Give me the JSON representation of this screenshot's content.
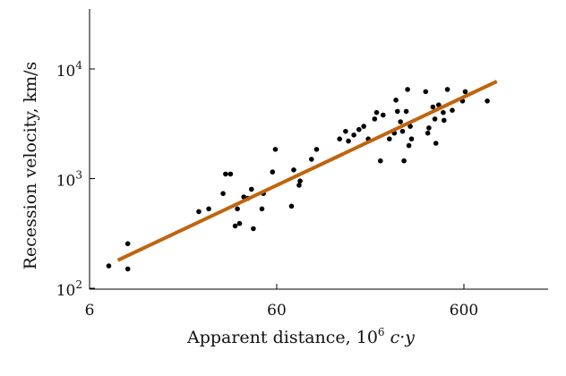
{
  "chart_data": {
    "type": "scatter",
    "title": "",
    "xlabel": "Apparent distance, 10",
    "xlabel_sup": "6",
    "xlabel_unit": " c·y",
    "ylabel": "Recession velocity, km/s",
    "xscale": "log",
    "yscale": "log",
    "xlim": [
      6,
      2000
    ],
    "ylim": [
      100,
      40000
    ],
    "x_ticks": [
      {
        "value": 6,
        "label": "6"
      },
      {
        "value": 60,
        "label": "60"
      },
      {
        "value": 600,
        "label": "600"
      }
    ],
    "y_ticks": [
      {
        "value": 100,
        "base": "10",
        "exp": "2"
      },
      {
        "value": 1000,
        "base": "10",
        "exp": "3"
      },
      {
        "value": 10000,
        "base": "10",
        "exp": "4"
      }
    ],
    "grid": false,
    "fit_line": {
      "color": "#c0640e",
      "x": [
        8.5,
        900
      ],
      "y": [
        180,
        7700
      ]
    },
    "points": [
      {
        "x": 7.6,
        "y": 160
      },
      {
        "x": 9.6,
        "y": 255
      },
      {
        "x": 9.6,
        "y": 150
      },
      {
        "x": 23,
        "y": 500
      },
      {
        "x": 26,
        "y": 530
      },
      {
        "x": 31,
        "y": 730
      },
      {
        "x": 32,
        "y": 1100
      },
      {
        "x": 34,
        "y": 1100
      },
      {
        "x": 36,
        "y": 370
      },
      {
        "x": 37,
        "y": 530
      },
      {
        "x": 38,
        "y": 390
      },
      {
        "x": 40,
        "y": 680
      },
      {
        "x": 42,
        "y": 660
      },
      {
        "x": 44,
        "y": 800
      },
      {
        "x": 45,
        "y": 350
      },
      {
        "x": 50,
        "y": 530
      },
      {
        "x": 51,
        "y": 730
      },
      {
        "x": 57,
        "y": 1150
      },
      {
        "x": 59,
        "y": 1850
      },
      {
        "x": 72,
        "y": 560
      },
      {
        "x": 74,
        "y": 1200
      },
      {
        "x": 79,
        "y": 870
      },
      {
        "x": 80,
        "y": 950
      },
      {
        "x": 92,
        "y": 1500
      },
      {
        "x": 98,
        "y": 1850
      },
      {
        "x": 130,
        "y": 2300
      },
      {
        "x": 140,
        "y": 2700
      },
      {
        "x": 145,
        "y": 2200
      },
      {
        "x": 155,
        "y": 2500
      },
      {
        "x": 165,
        "y": 2800
      },
      {
        "x": 175,
        "y": 3000
      },
      {
        "x": 185,
        "y": 2300
      },
      {
        "x": 200,
        "y": 3500
      },
      {
        "x": 205,
        "y": 4000
      },
      {
        "x": 215,
        "y": 1450
      },
      {
        "x": 222,
        "y": 3800
      },
      {
        "x": 240,
        "y": 2300
      },
      {
        "x": 255,
        "y": 2600
      },
      {
        "x": 260,
        "y": 5200
      },
      {
        "x": 265,
        "y": 4100
      },
      {
        "x": 275,
        "y": 3300
      },
      {
        "x": 282,
        "y": 2700
      },
      {
        "x": 287,
        "y": 1450
      },
      {
        "x": 295,
        "y": 4100
      },
      {
        "x": 300,
        "y": 6500
      },
      {
        "x": 305,
        "y": 2000
      },
      {
        "x": 310,
        "y": 3000
      },
      {
        "x": 315,
        "y": 2300
      },
      {
        "x": 375,
        "y": 6200
      },
      {
        "x": 385,
        "y": 2600
      },
      {
        "x": 390,
        "y": 2900
      },
      {
        "x": 410,
        "y": 4500
      },
      {
        "x": 420,
        "y": 3500
      },
      {
        "x": 425,
        "y": 2100
      },
      {
        "x": 440,
        "y": 4700
      },
      {
        "x": 465,
        "y": 4000
      },
      {
        "x": 470,
        "y": 3400
      },
      {
        "x": 490,
        "y": 6500
      },
      {
        "x": 520,
        "y": 4200
      },
      {
        "x": 590,
        "y": 5100
      },
      {
        "x": 610,
        "y": 6200
      },
      {
        "x": 800,
        "y": 5100
      }
    ]
  }
}
